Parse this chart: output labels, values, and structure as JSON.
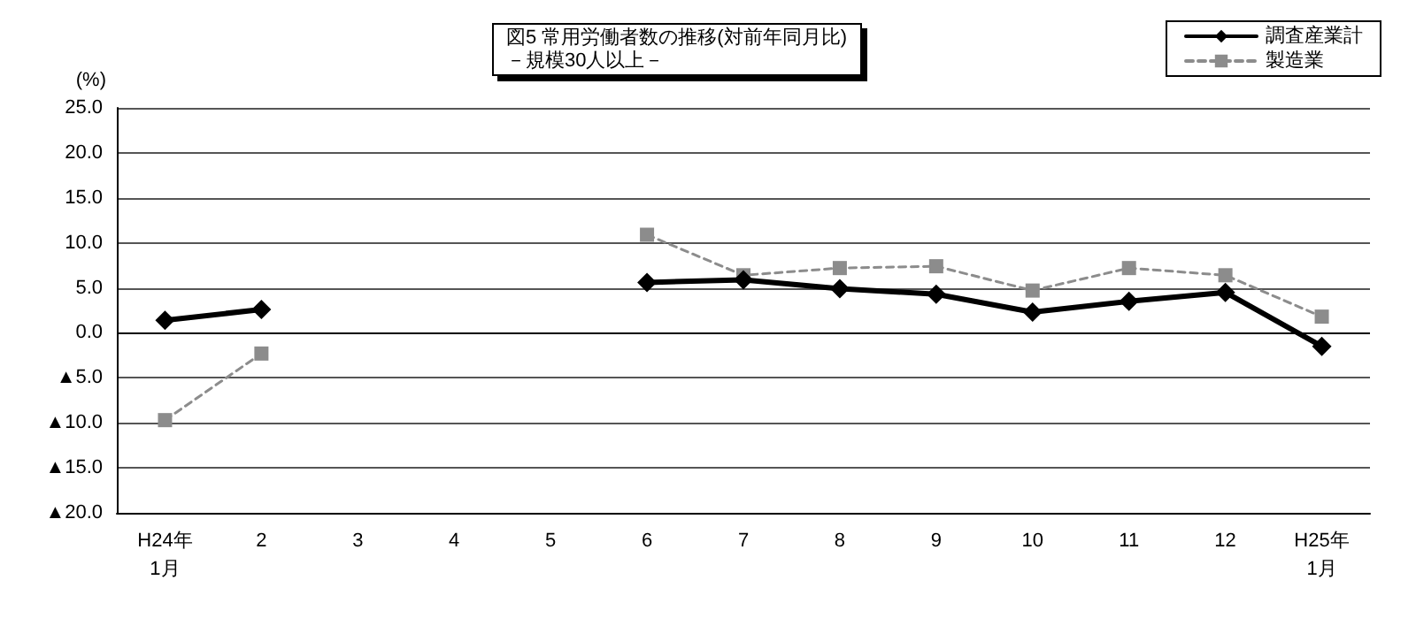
{
  "chart_data": {
    "type": "line",
    "title": "図5 常用労働者数の推移(対前年同月比)",
    "subtitle": "－規模30人以上－",
    "ylabel": "(%)",
    "categories": [
      "H24年\n1月",
      "2",
      "3",
      "4",
      "5",
      "6",
      "7",
      "8",
      "9",
      "10",
      "11",
      "12",
      "H25年\n1月"
    ],
    "series": [
      {
        "name": "調査産業計",
        "color": "#000000",
        "marker": "diamond",
        "line_style": "solid",
        "values": [
          1.4,
          2.6,
          null,
          null,
          null,
          5.6,
          5.9,
          4.9,
          4.3,
          2.3,
          3.5,
          4.5,
          -1.5
        ]
      },
      {
        "name": "製造業",
        "color": "#8c8c8c",
        "marker": "square",
        "line_style": "dashed",
        "values": [
          -9.7,
          -2.3,
          null,
          null,
          null,
          10.9,
          6.4,
          7.2,
          7.4,
          4.7,
          7.2,
          6.4,
          1.8
        ]
      }
    ],
    "ylim": [
      -20,
      25
    ],
    "yticks": [
      {
        "value": -20,
        "label": "▲20.0"
      },
      {
        "value": -15,
        "label": "▲15.0"
      },
      {
        "value": -10,
        "label": "▲10.0"
      },
      {
        "value": -5,
        "label": "▲5.0"
      },
      {
        "value": 0,
        "label": "0.0"
      },
      {
        "value": 5,
        "label": "5.0"
      },
      {
        "value": 10,
        "label": "10.0"
      },
      {
        "value": 15,
        "label": "15.0"
      },
      {
        "value": 20,
        "label": "20.0"
      },
      {
        "value": 25,
        "label": "25.0"
      }
    ],
    "grid": "y",
    "legend": "top right"
  }
}
